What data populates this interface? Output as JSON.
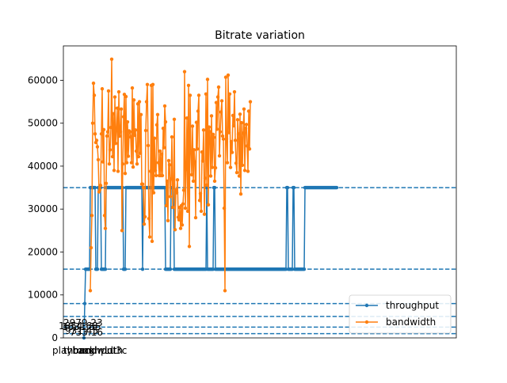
{
  "chart_data": {
    "type": "line",
    "title": "Bitrate variation",
    "xlabel": "",
    "ylabel": "",
    "xlim": [
      -26,
      470
    ],
    "ylim": [
      0,
      68000
    ],
    "yticks": [
      0,
      10000,
      20000,
      30000,
      40000,
      50000,
      60000
    ],
    "ytick_labels": [
      "0",
      "10000",
      "20000",
      "30000",
      "40000",
      "50000",
      "60000"
    ],
    "grid": false,
    "legend": {
      "placement": "lower-right",
      "entries": [
        "throughput",
        "bandwidth"
      ]
    },
    "reference_lines": [
      1000,
      2500,
      5000,
      8000,
      16000,
      35000
    ],
    "series": [
      {
        "name": "throughput",
        "color": "#1f77b4",
        "x_start": 0,
        "values": [
          0,
          8000,
          16000,
          16000,
          16000,
          16000,
          16000,
          16000,
          35000,
          35000,
          35000,
          35000,
          35000,
          35000,
          35000,
          16000,
          16000,
          16000,
          35000,
          35000,
          35000,
          35000,
          16000,
          16000,
          16000,
          16000,
          16000,
          16000,
          35000,
          35000,
          35000,
          35000,
          35000,
          35000,
          35000,
          35000,
          35000,
          35000,
          35000,
          35000,
          35000,
          35000,
          35000,
          35000,
          35000,
          35000,
          35000,
          35000,
          35000,
          35000,
          16000,
          16000,
          16000,
          35000,
          35000,
          35000,
          35000,
          35000,
          35000,
          35000,
          35000,
          35000,
          35000,
          35000,
          35000,
          35000,
          35000,
          35000,
          35000,
          35000,
          35000,
          35000,
          35000,
          35000,
          16000,
          35000,
          35000,
          35000,
          35000,
          35000,
          35000,
          35000,
          35000,
          35000,
          35000,
          35000,
          35000,
          35000,
          35000,
          35000,
          35000,
          35000,
          35000,
          35000,
          35000,
          35000,
          35000,
          35000,
          35000,
          35000,
          35000,
          35000,
          35000,
          16000,
          16000,
          16000,
          16000,
          16000,
          16000,
          16000,
          35000,
          35000,
          35000,
          35000,
          16000,
          16000,
          16000,
          16000,
          16000,
          16000,
          16000,
          16000,
          16000,
          16000,
          16000,
          16000,
          16000,
          16000,
          16000,
          16000,
          16000,
          16000,
          16000,
          16000,
          16000,
          16000,
          16000,
          16000,
          16000,
          16000,
          16000,
          16000,
          16000,
          16000,
          16000,
          16000,
          16000,
          16000,
          16000,
          16000,
          16000,
          16000,
          16000,
          16000,
          16000,
          35000,
          16000,
          16000,
          16000,
          16000,
          16000,
          16000,
          16000,
          16000,
          35000,
          35000,
          16000,
          16000,
          16000,
          16000,
          16000,
          16000,
          16000,
          16000,
          16000,
          16000,
          16000,
          16000,
          16000,
          16000,
          16000,
          16000,
          16000,
          16000,
          16000,
          16000,
          16000,
          16000,
          16000,
          16000,
          16000,
          16000,
          16000,
          16000,
          16000,
          16000,
          16000,
          16000,
          16000,
          16000,
          16000,
          16000,
          16000,
          16000,
          16000,
          16000,
          16000,
          16000,
          16000,
          16000,
          16000,
          16000,
          16000,
          16000,
          16000,
          16000,
          16000,
          16000,
          16000,
          16000,
          16000,
          16000,
          16000,
          16000,
          16000,
          16000,
          16000,
          16000,
          16000,
          16000,
          16000,
          16000,
          16000,
          16000,
          16000,
          16000,
          16000,
          16000,
          16000,
          16000,
          16000,
          16000,
          16000,
          16000,
          16000,
          16000,
          16000,
          16000,
          16000,
          16000,
          16000,
          16000,
          16000,
          16000,
          16000,
          16000,
          35000,
          35000,
          16000,
          16000,
          16000,
          16000,
          16000,
          16000,
          35000,
          35000,
          16000,
          16000,
          16000,
          16000,
          16000,
          16000,
          16000,
          16000,
          16000,
          16000,
          16000,
          16000,
          16000,
          35000,
          35000,
          35000,
          35000,
          35000,
          35000,
          35000,
          35000,
          35000,
          35000,
          35000,
          35000,
          35000,
          35000,
          35000,
          35000,
          35000,
          35000,
          35000,
          35000,
          35000,
          35000,
          35000,
          35000,
          35000,
          35000,
          35000,
          35000,
          35000,
          35000,
          35000,
          35000,
          35000,
          35000,
          35000,
          35000,
          35000,
          35000,
          35000,
          35000,
          35000
        ]
      },
      {
        "name": "bandwidth",
        "color": "#ff7f0e",
        "x_start": 8,
        "values": [
          11000,
          21000,
          28500,
          50000,
          59300,
          56500,
          47500,
          45500,
          46000,
          44500,
          41500,
          34000,
          34500,
          35500,
          47500,
          58000,
          41000,
          48500,
          28500,
          25500,
          36000,
          47000,
          48000,
          57500,
          40500,
          43800,
          49000,
          64900,
          42200,
          52200,
          39000,
          56100,
          45300,
          48400,
          53500,
          38800,
          57300,
          47000,
          48000,
          53300,
          25000,
          40500,
          51500,
          56700,
          38300,
          56200,
          40800,
          50300,
          42300,
          48200,
          48000,
          46800,
          40800,
          58200,
          39800,
          55400,
          47200,
          48400,
          43500,
          40500,
          54500,
          42200,
          55000,
          43000,
          52000,
          35800,
          35800,
          35000,
          26500,
          28200,
          48300,
          55000,
          59000,
          44800,
          27800,
          23500,
          38800,
          58800,
          22500,
          59000,
          33800,
          46500,
          39000,
          37800,
          49600,
          52000,
          40800,
          37800,
          43500,
          37800,
          42800,
          37800,
          48800,
          44300,
          54000,
          50300,
          30800,
          36500,
          27300,
          41300,
          40300,
          32900,
          37000,
          46800,
          30400,
          35700,
          50900,
          25200,
          34500,
          33800,
          36800,
          28100,
          27500,
          30400,
          25500,
          30800,
          26300,
          31200,
          34400,
          62000,
          30200,
          39200,
          51200,
          29500,
          58800,
          21300,
          56500,
          43500,
          38000,
          49300,
          36500,
          43800,
          41000,
          28000,
          50200,
          44000,
          52800,
          56500,
          32000,
          33600,
          29500,
          43300,
          41200,
          48400,
          28800,
          37200,
          56800,
          35600,
          60200,
          31000,
          49100,
          48000,
          37700,
          51700,
          39700,
          47400,
          46700,
          36500,
          39600,
          54800,
          48600,
          56100,
          58400,
          42400,
          48000,
          52600,
          55200,
          47000,
          46300,
          30200,
          11000,
          60700,
          46300,
          40800,
          61200,
          47800,
          56800,
          39700,
          45700,
          43200,
          51800,
          49400,
          57300,
          46000,
          40700,
          38500,
          50800,
          47500,
          37700,
          52100,
          33500,
          50100,
          40200,
          47700,
          53300,
          39000,
          48800,
          49700,
          44700,
          38800,
          52800,
          44000,
          55000
        ]
      }
    ]
  },
  "overlay": {
    "glitch_label_a": "2979.23",
    "glitch_label_b": "1854.68",
    "glitch_label_c": "1631.55",
    "glitch_label_d": "931.45",
    "glitch_label_e": "733.16",
    "glitch_xtick_a": "playback",
    "glitch_xtick_b": "throughput",
    "glitch_xtick_c": "bandwidth",
    "glitch_xtick_d": "m",
    "glitch_xtick_e": "m",
    "glitch_xtick_f": "Lu3c"
  }
}
